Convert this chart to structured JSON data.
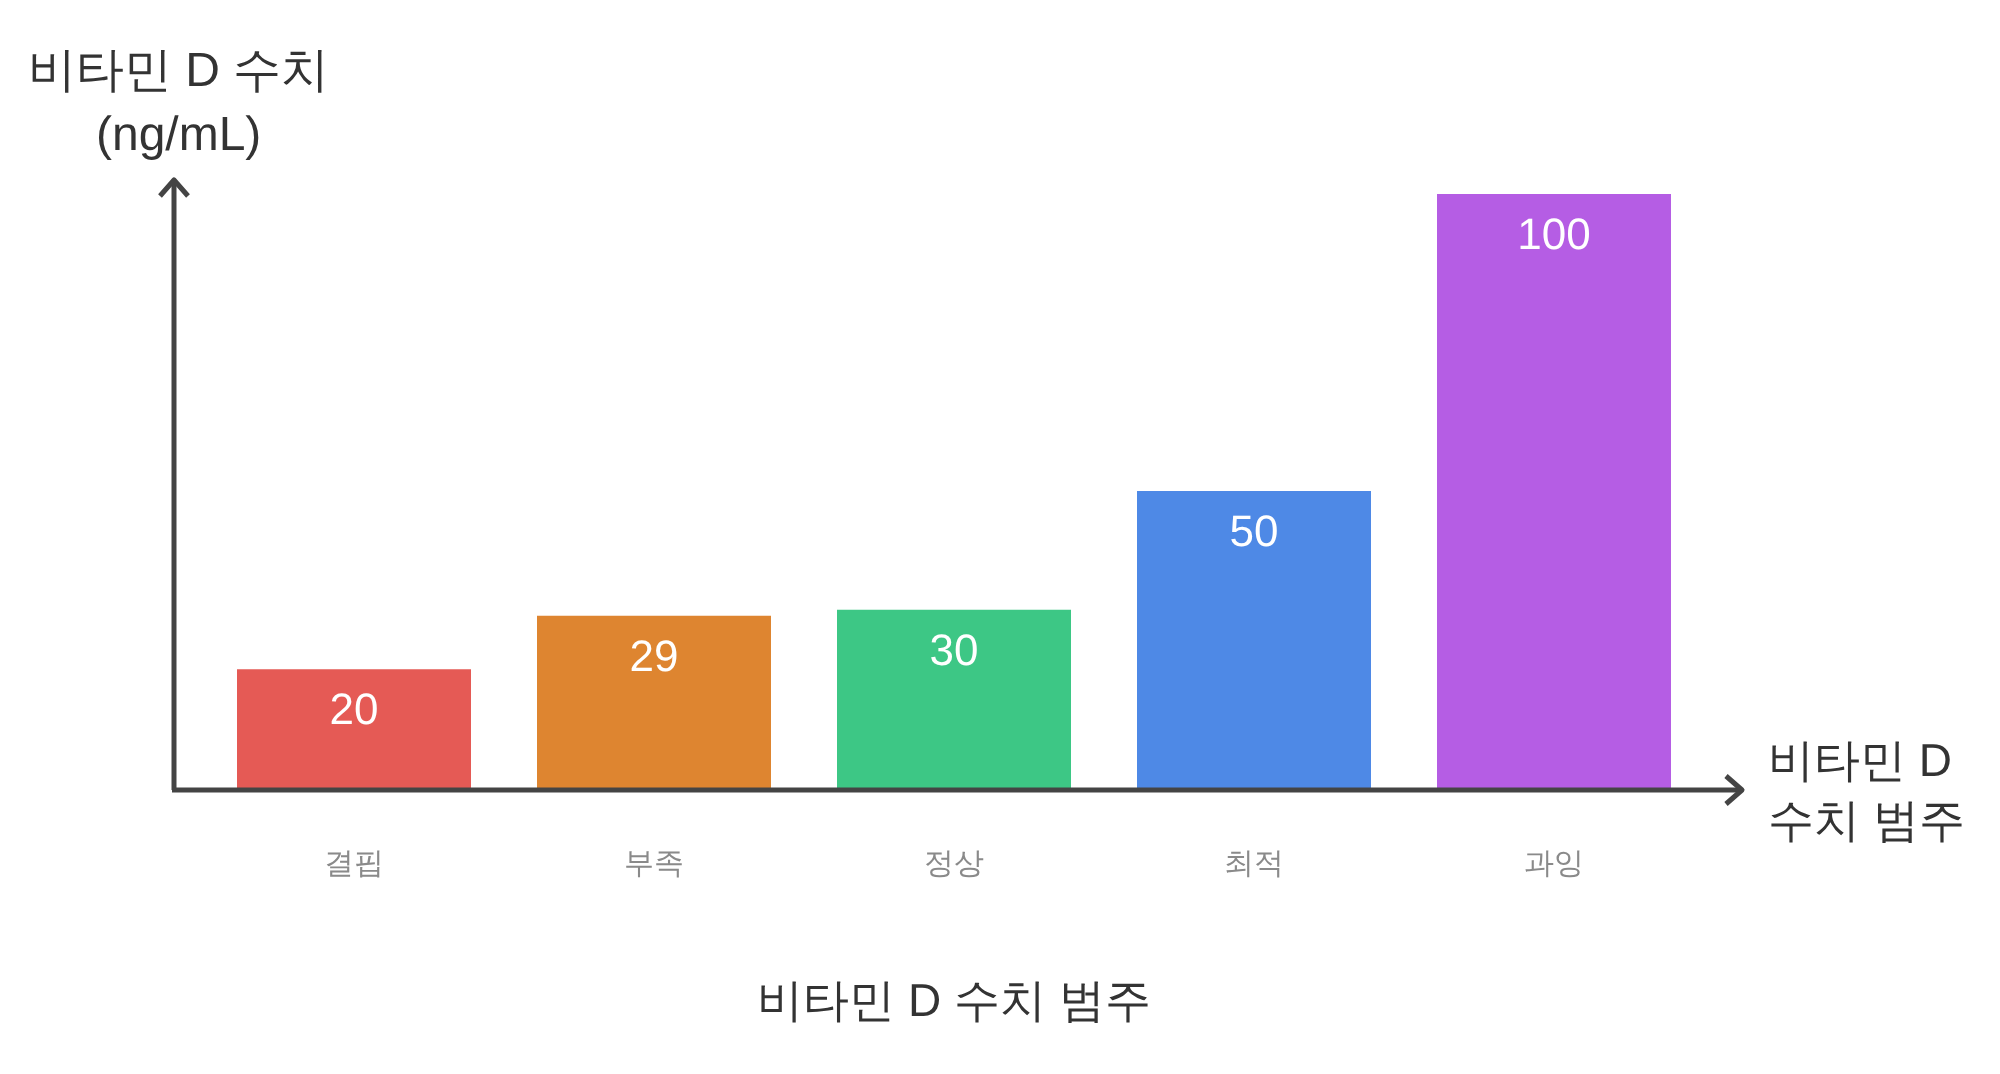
{
  "chart_data": {
    "type": "bar",
    "ylabel": "비타민 D 수치\n(ng/mL)",
    "xlabel": "비타민 D 수치 범주",
    "annotations": [
      "비타민 D\n수치 범주"
    ],
    "categories": [
      "결핍",
      "부족",
      "정상",
      "최적",
      "과잉"
    ],
    "values": [
      20,
      29,
      30,
      50,
      100
    ],
    "colors": [
      "#e55a55",
      "#de8530",
      "#3dc785",
      "#4e89e6",
      "#b55de4"
    ],
    "data_labels": true,
    "grid": false,
    "legend": false
  }
}
